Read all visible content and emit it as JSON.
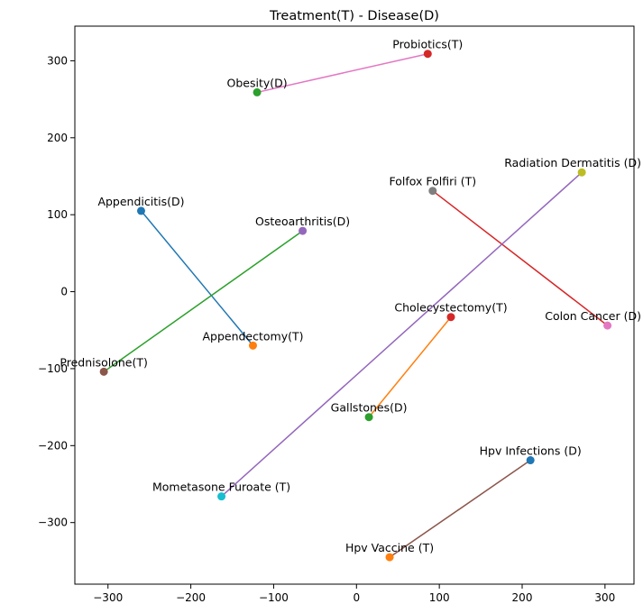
{
  "chart_data": {
    "type": "scatter",
    "title": "Treatment(T) - Disease(D)",
    "xlabel": "",
    "ylabel": "",
    "xlim": [
      -340,
      335
    ],
    "ylim": [
      -380,
      345
    ],
    "xticks": [
      -300,
      -200,
      -100,
      0,
      100,
      200,
      300
    ],
    "yticks": [
      -300,
      -200,
      -100,
      0,
      100,
      200,
      300
    ],
    "grid": false,
    "pairs": [
      {
        "color": "#1f77b4",
        "points": [
          {
            "label": "Appendicitis(D)",
            "x": -260,
            "y": 105,
            "color": "#1f77b4"
          },
          {
            "label": "Appendectomy(T)",
            "x": -125,
            "y": -70,
            "color": "#ff7f0e"
          }
        ]
      },
      {
        "color": "#ff7f0e",
        "points": [
          {
            "label": "Cholecystectomy(T)",
            "x": 114,
            "y": -33,
            "color": "#d62728"
          },
          {
            "label": "Gallstones(D)",
            "x": 15,
            "y": -163,
            "color": "#2ca02c"
          }
        ]
      },
      {
        "color": "#2ca02c",
        "points": [
          {
            "label": "Osteoarthritis(D)",
            "x": -65,
            "y": 79,
            "color": "#9467bd"
          },
          {
            "label": "Prednisolone(T)",
            "x": -305,
            "y": -104,
            "color": "#8c564b"
          }
        ]
      },
      {
        "color": "#d62728",
        "points": [
          {
            "label": "Folfox Folfiri (T)",
            "x": 92,
            "y": 131,
            "color": "#7f7f7f"
          },
          {
            "label": "Colon Cancer (D)",
            "x": 303,
            "y": -44,
            "color": "#e377c2"
          }
        ]
      },
      {
        "color": "#9467bd",
        "points": [
          {
            "label": "Radiation Dermatitis (D)",
            "x": 272,
            "y": 155,
            "color": "#bcbd22"
          },
          {
            "label": "Mometasone Furoate (T)",
            "x": -163,
            "y": -266,
            "color": "#17becf"
          }
        ]
      },
      {
        "color": "#8c564b",
        "points": [
          {
            "label": "Hpv Infections (D)",
            "x": 210,
            "y": -219,
            "color": "#1f77b4"
          },
          {
            "label": "Hpv Vaccine (T)",
            "x": 40,
            "y": -345,
            "color": "#ff7f0e"
          }
        ]
      },
      {
        "color": "#e377c2",
        "points": [
          {
            "label": "Obesity(D)",
            "x": -120,
            "y": 259,
            "color": "#2ca02c"
          },
          {
            "label": "Probiotics(T)",
            "x": 86,
            "y": 309,
            "color": "#d62728"
          }
        ]
      }
    ]
  }
}
